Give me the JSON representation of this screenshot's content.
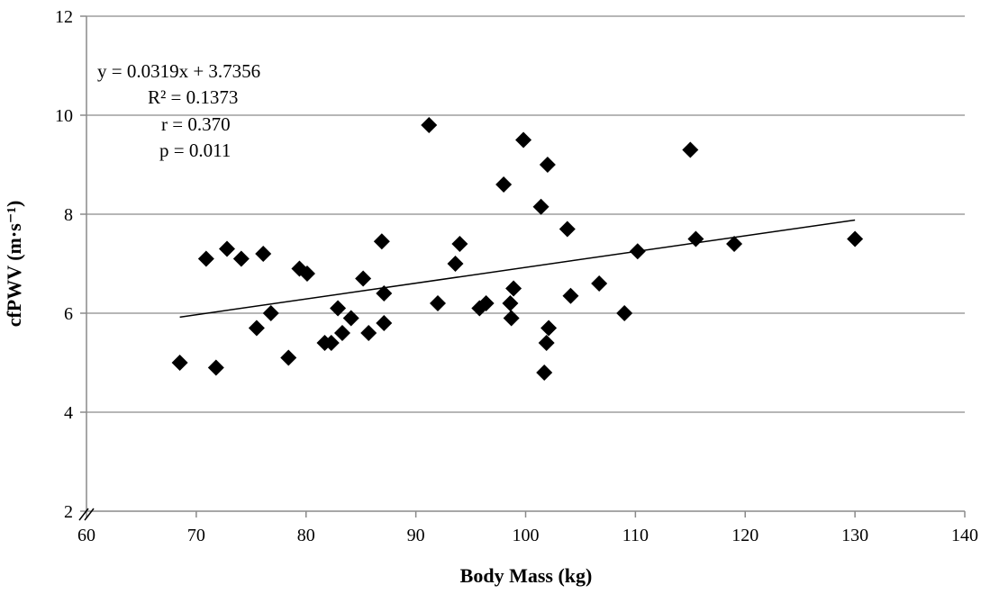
{
  "chart_data": {
    "type": "scatter",
    "xlabel": "Body Mass (kg)",
    "ylabel": "cfPWV (m·s⁻¹)",
    "xlim": [
      60,
      140
    ],
    "ylim": [
      2,
      12
    ],
    "x_ticks": [
      60,
      70,
      80,
      90,
      100,
      110,
      120,
      130,
      140
    ],
    "y_ticks": [
      2,
      4,
      6,
      8,
      10,
      12
    ],
    "grid": "horizontal",
    "y_axis_break": true,
    "marker": "diamond",
    "annotations": [
      "y = 0.0319x + 3.7356",
      "R² = 0.1373",
      "r = 0.370",
      "p = 0.011"
    ],
    "trendline": {
      "slope": 0.0319,
      "intercept": 3.7356,
      "x_range": [
        68.5,
        130
      ]
    },
    "points": [
      {
        "x": 68.5,
        "y": 5.0
      },
      {
        "x": 70.9,
        "y": 7.1
      },
      {
        "x": 71.8,
        "y": 4.9
      },
      {
        "x": 72.8,
        "y": 7.3
      },
      {
        "x": 74.1,
        "y": 7.1
      },
      {
        "x": 75.5,
        "y": 5.7
      },
      {
        "x": 76.1,
        "y": 7.2
      },
      {
        "x": 76.8,
        "y": 6.0
      },
      {
        "x": 78.4,
        "y": 5.1
      },
      {
        "x": 79.4,
        "y": 6.9
      },
      {
        "x": 80.1,
        "y": 6.8
      },
      {
        "x": 81.7,
        "y": 5.4
      },
      {
        "x": 82.3,
        "y": 5.4
      },
      {
        "x": 82.9,
        "y": 6.1
      },
      {
        "x": 83.3,
        "y": 5.6
      },
      {
        "x": 84.1,
        "y": 5.9
      },
      {
        "x": 85.2,
        "y": 6.7
      },
      {
        "x": 85.7,
        "y": 5.6
      },
      {
        "x": 86.9,
        "y": 7.45
      },
      {
        "x": 87.1,
        "y": 6.4
      },
      {
        "x": 87.1,
        "y": 5.8
      },
      {
        "x": 91.2,
        "y": 9.8
      },
      {
        "x": 92.0,
        "y": 6.2
      },
      {
        "x": 93.6,
        "y": 7.0
      },
      {
        "x": 94.0,
        "y": 7.4
      },
      {
        "x": 95.8,
        "y": 6.1
      },
      {
        "x": 96.4,
        "y": 6.2
      },
      {
        "x": 98.0,
        "y": 8.6
      },
      {
        "x": 98.6,
        "y": 6.2
      },
      {
        "x": 98.7,
        "y": 5.9
      },
      {
        "x": 98.9,
        "y": 6.5
      },
      {
        "x": 99.8,
        "y": 9.5
      },
      {
        "x": 101.4,
        "y": 8.15
      },
      {
        "x": 101.7,
        "y": 4.8
      },
      {
        "x": 101.9,
        "y": 5.4
      },
      {
        "x": 102.0,
        "y": 9.0
      },
      {
        "x": 102.1,
        "y": 5.7
      },
      {
        "x": 103.8,
        "y": 7.7
      },
      {
        "x": 104.1,
        "y": 6.35
      },
      {
        "x": 106.7,
        "y": 6.6
      },
      {
        "x": 109.0,
        "y": 6.0
      },
      {
        "x": 110.2,
        "y": 7.25
      },
      {
        "x": 115.0,
        "y": 9.3
      },
      {
        "x": 115.5,
        "y": 7.5
      },
      {
        "x": 119.0,
        "y": 7.4
      },
      {
        "x": 130.0,
        "y": 7.5
      }
    ]
  }
}
